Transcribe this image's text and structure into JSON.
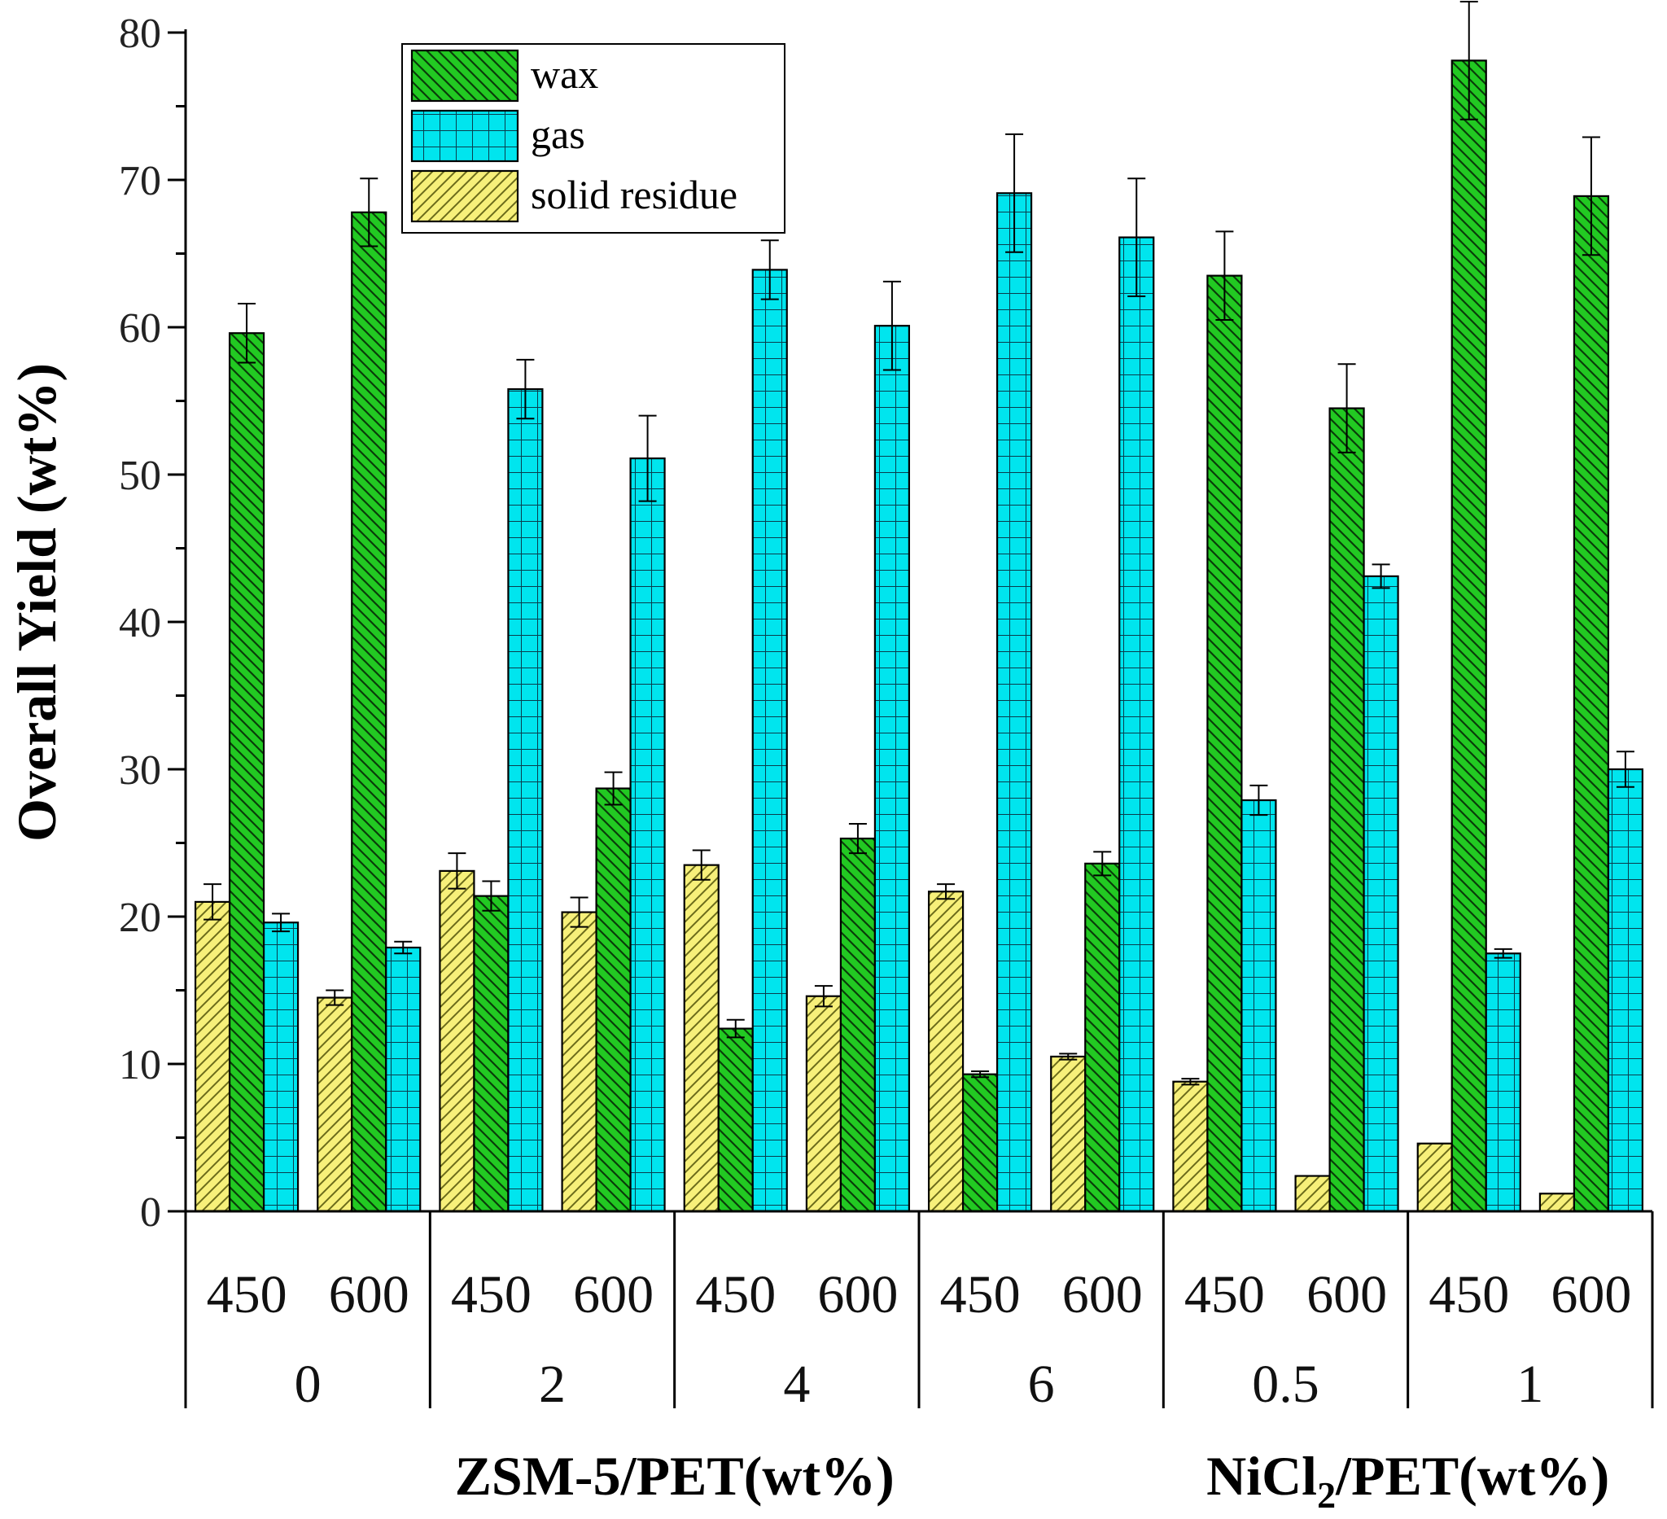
{
  "chart_data": {
    "type": "bar",
    "title": "",
    "ylabel": "Overall Yield (wt%)",
    "ylim": [
      0,
      80
    ],
    "yticks": [
      0,
      10,
      20,
      30,
      40,
      50,
      60,
      70,
      80
    ],
    "ytick_labels": [
      "0",
      "10",
      "20",
      "30",
      "40",
      "50",
      "60",
      "70",
      "80"
    ],
    "legend_position": "top-left",
    "groups": [
      {
        "label": "0",
        "temps": [
          "450",
          "600"
        ]
      },
      {
        "label": "2",
        "temps": [
          "450",
          "600"
        ]
      },
      {
        "label": "4",
        "temps": [
          "450",
          "600"
        ]
      },
      {
        "label": "6",
        "temps": [
          "450",
          "600"
        ]
      },
      {
        "label": "0.5",
        "temps": [
          "450",
          "600"
        ]
      },
      {
        "label": "1",
        "temps": [
          "450",
          "600"
        ]
      }
    ],
    "group_axis_titles": [
      {
        "text": "ZSM-5/PET(wt%)",
        "groups": [
          0,
          1,
          2,
          3
        ]
      },
      {
        "text": "NiCl",
        "sub": "2",
        "rest": "/PET(wt%)",
        "groups": [
          4,
          5
        ]
      }
    ],
    "categories": [
      "0-450",
      "0-600",
      "2-450",
      "2-600",
      "4-450",
      "4-600",
      "6-450",
      "6-600",
      "0.5-450",
      "0.5-600",
      "1-450",
      "1-600"
    ],
    "series": [
      {
        "name": "wax",
        "color": "#22c922",
        "pattern": "diag-back",
        "values": [
          59.6,
          67.8,
          21.4,
          28.7,
          12.4,
          25.3,
          9.3,
          23.6,
          63.5,
          54.5,
          78.1,
          68.9
        ],
        "errors": [
          2.0,
          2.3,
          1.0,
          1.1,
          0.6,
          1.0,
          0.2,
          0.8,
          3.0,
          3.0,
          4.0,
          4.0
        ]
      },
      {
        "name": "gas",
        "color": "#00e5ee",
        "pattern": "grid",
        "values": [
          19.6,
          17.9,
          55.8,
          51.1,
          63.9,
          60.1,
          69.1,
          66.1,
          27.9,
          43.1,
          17.5,
          30.0
        ],
        "errors": [
          0.6,
          0.4,
          2.0,
          2.9,
          2.0,
          3.0,
          4.0,
          4.0,
          1.0,
          0.8,
          0.3,
          1.2
        ]
      },
      {
        "name": "solid residue",
        "color": "#f7f07a",
        "pattern": "diag-fwd",
        "values": [
          21.0,
          14.5,
          23.1,
          20.3,
          23.5,
          14.6,
          21.7,
          10.5,
          8.8,
          2.4,
          4.6,
          1.2
        ],
        "errors": [
          1.2,
          0.5,
          1.2,
          1.0,
          1.0,
          0.7,
          0.5,
          0.2,
          0.2,
          0.0,
          0.0,
          0.0
        ]
      }
    ]
  }
}
